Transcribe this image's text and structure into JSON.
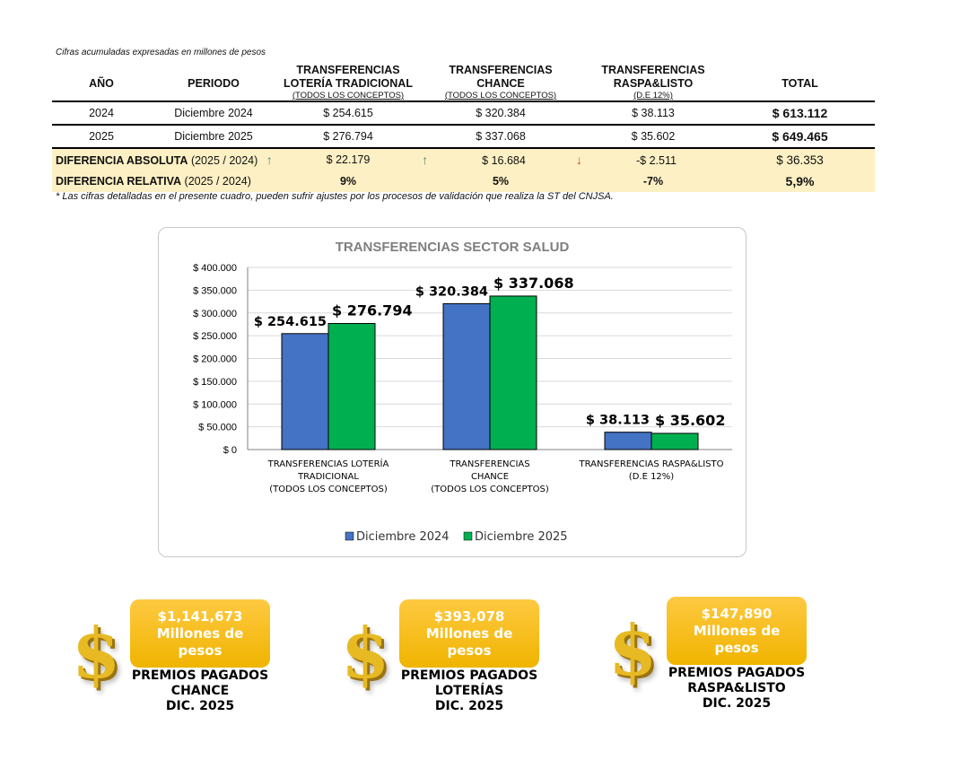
{
  "header": {
    "note": "Cifras acumuladas expresadas en millones de pesos"
  },
  "table": {
    "columns": [
      {
        "title": "AÑO",
        "sub": ""
      },
      {
        "title": "PERIODO",
        "sub": ""
      },
      {
        "title": "TRANSFERENCIAS LOTERÍA TRADICIONAL",
        "sub": "(TODOS LOS CONCEPTOS)"
      },
      {
        "title": "TRANSFERENCIAS CHANCE",
        "sub": "(TODOS LOS CONCEPTOS)"
      },
      {
        "title": "TRANSFERENCIAS RASPA&LISTO",
        "sub": "(D.E 12%)"
      },
      {
        "title": "TOTAL",
        "sub": ""
      }
    ],
    "rows": [
      {
        "year": "2024",
        "period": "Diciembre 2024",
        "loteria": "$ 254.615",
        "chance": "$ 320.384",
        "raspa": "$ 38.113",
        "total": "$ 613.112"
      },
      {
        "year": "2025",
        "period": "Diciembre 2025",
        "loteria": "$ 276.794",
        "chance": "$ 337.068",
        "raspa": "$ 35.602",
        "total": "$ 649.465"
      }
    ],
    "abs": {
      "label": "DIFERENCIA ABSOLUTA",
      "years": "(2025 / 2024)",
      "loteria": "$ 22.179",
      "chance": "$ 16.684",
      "raspa": "-$ 2.511",
      "total": "$ 36.353",
      "loteria_trend": "up",
      "chance_trend": "up",
      "raspa_trend": "down"
    },
    "rel": {
      "label": "DIFERENCIA RELATIVA",
      "years": "(2025 / 2024)",
      "loteria": "9%",
      "chance": "5%",
      "raspa": "-7%",
      "total": "5,9%"
    },
    "up_arrow": "↑",
    "down_arrow": "↓"
  },
  "footnote": "* Las cifras detalladas en el presente cuadro, pueden sufrir ajustes por los procesos de validación que realiza la ST del CNJSA.",
  "chart_data": {
    "type": "bar",
    "title": "TRANSFERENCIAS SECTOR SALUD",
    "categories": [
      [
        "TRANSFERENCIAS LOTERÍA",
        "TRADICIONAL",
        "(TODOS LOS CONCEPTOS)"
      ],
      [
        "TRANSFERENCIAS",
        "CHANCE",
        "(TODOS LOS CONCEPTOS)"
      ],
      [
        "TRANSFERENCIAS RASPA&LISTO",
        "(D.E 12%)"
      ]
    ],
    "series": [
      {
        "name": "Diciembre 2024",
        "values": [
          254615,
          320384,
          38113
        ],
        "labels": [
          "$ 254.615",
          "$ 320.384",
          "$ 38.113"
        ],
        "color": "#4472c4"
      },
      {
        "name": "Diciembre 2025",
        "values": [
          276794,
          337068,
          35602
        ],
        "labels": [
          "$ 276.794",
          "$ 337.068",
          "$ 35.602"
        ],
        "color": "#00b050"
      }
    ],
    "ylim": [
      0,
      400000
    ],
    "yticks": [
      "$ 0",
      "$ 50.000",
      "$ 100.000",
      "$ 150.000",
      "$ 200.000",
      "$ 250.000",
      "$ 300.000",
      "$ 350.000",
      "$ 400.000"
    ],
    "grid": true,
    "legend": "bottom"
  },
  "cards": [
    {
      "amount": "$1,141,673",
      "unit": "Millones de pesos",
      "caption": [
        "PREMIOS PAGADOS",
        "CHANCE",
        "DIC. 2025"
      ]
    },
    {
      "amount": "$393,078",
      "unit": "Millones de pesos",
      "caption": [
        "PREMIOS PAGADOS",
        "LOTERÍAS",
        "DIC. 2025"
      ]
    },
    {
      "amount": "$147,890",
      "unit": "Millones de pesos",
      "caption": [
        "PREMIOS PAGADOS",
        "RASPA&LISTO",
        "DIC. 2025"
      ]
    }
  ],
  "colors": {
    "arrow_up": "#3f8f6f",
    "arrow_down": "#d9481c",
    "highlight": "#fdf0c4",
    "card": "#f7be16"
  },
  "icons": {
    "dollar": "dollar-sign-icon",
    "dollar_glyph": "$"
  }
}
